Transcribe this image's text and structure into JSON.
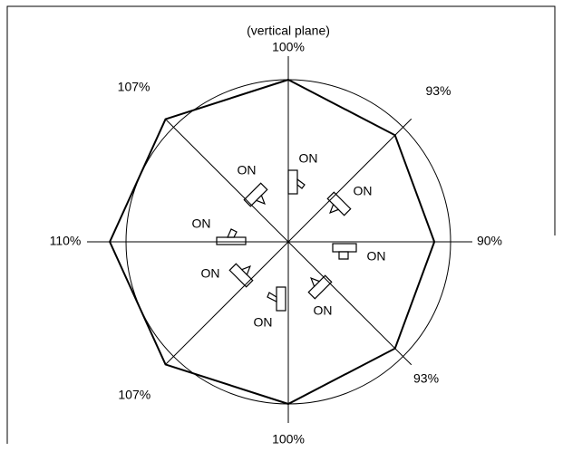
{
  "chart_data": {
    "type": "radar",
    "title": "(vertical plane)",
    "values": [
      100,
      93,
      90,
      93,
      100,
      107,
      110,
      107
    ],
    "value_labels": [
      "100%",
      "93%",
      "90%",
      "93%",
      "100%",
      "107%",
      "110%",
      "107%"
    ],
    "annotations": [
      "ON",
      "ON",
      "ON",
      "ON",
      "ON",
      "ON",
      "ON",
      "ON"
    ],
    "color": "#000000"
  }
}
